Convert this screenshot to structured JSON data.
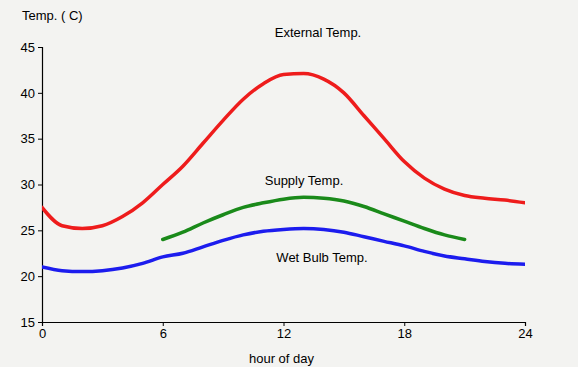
{
  "chart_data": {
    "type": "line",
    "ylabel": "Temp. ( C)",
    "xlabel": "hour of day",
    "x": [
      0,
      1,
      2,
      3,
      4,
      5,
      6,
      7,
      8,
      9,
      10,
      11,
      12,
      13,
      14,
      15,
      16,
      17,
      18,
      19,
      20,
      21,
      22,
      23,
      24
    ],
    "xlim": [
      0,
      24
    ],
    "xticks": [
      0,
      6,
      12,
      18,
      24
    ],
    "ylim": [
      15,
      45
    ],
    "yticks": [
      15,
      20,
      25,
      30,
      35,
      40,
      45
    ],
    "grid": false,
    "series": [
      {
        "name": "External Temp.",
        "color": "#ee1c1c",
        "values": [
          27.5,
          25.5,
          25.2,
          25.5,
          26.5,
          28,
          30,
          32,
          34.5,
          37,
          39.3,
          41,
          42,
          42.1,
          41.5,
          40,
          37.5,
          35,
          32.5,
          30.7,
          29.5,
          28.8,
          28.5,
          28.3,
          28
        ]
      },
      {
        "name": "Supply Temp.",
        "color": "#1a8a1a",
        "values": [
          null,
          null,
          null,
          null,
          null,
          null,
          24,
          24.8,
          25.8,
          26.7,
          27.5,
          28,
          28.4,
          28.6,
          28.5,
          28.2,
          27.6,
          26.8,
          26,
          25.2,
          24.5,
          24,
          null,
          null,
          null
        ]
      },
      {
        "name": "Wet Bulb Temp.",
        "color": "#1c1cee",
        "values": [
          21,
          20.6,
          20.5,
          20.6,
          20.9,
          21.4,
          22.1,
          22.5,
          23.2,
          23.9,
          24.5,
          24.9,
          25.1,
          25.2,
          25.1,
          24.8,
          24.3,
          23.8,
          23.3,
          22.7,
          22.2,
          21.9,
          21.6,
          21.4,
          21.3
        ]
      }
    ]
  }
}
